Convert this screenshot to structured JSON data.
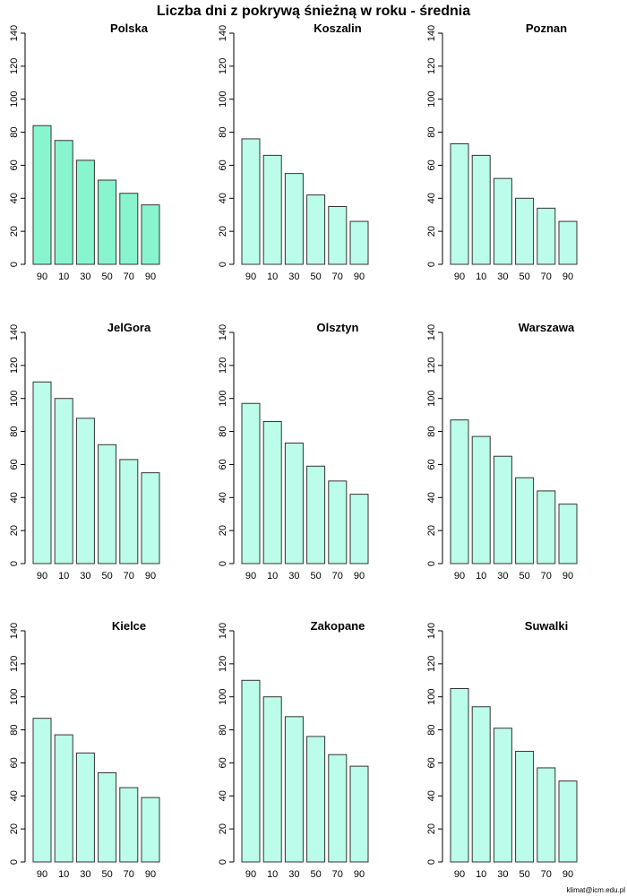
{
  "main_title": "Liczba dni z pokrywą śnieżną w roku - średnia",
  "credit": "klimat@icm.edu.pl",
  "bar_colors": {
    "highlight": "#88f5cf",
    "default": "#bbfdea",
    "stroke": "#333333"
  },
  "chart_data": [
    {
      "type": "bar",
      "title": "Polska",
      "categories": [
        "90",
        "10",
        "30",
        "50",
        "70",
        "90"
      ],
      "values": [
        84,
        75,
        63,
        51,
        43,
        36
      ],
      "ylim": [
        0,
        140
      ],
      "yticks": [
        0,
        20,
        40,
        60,
        80,
        100,
        120,
        140
      ],
      "xlabel": "",
      "ylabel": ""
    },
    {
      "type": "bar",
      "title": "Koszalin",
      "categories": [
        "90",
        "10",
        "30",
        "50",
        "70",
        "90"
      ],
      "values": [
        76,
        66,
        55,
        42,
        35,
        26
      ],
      "ylim": [
        0,
        140
      ],
      "yticks": [
        0,
        20,
        40,
        60,
        80,
        100,
        120,
        140
      ],
      "xlabel": "",
      "ylabel": ""
    },
    {
      "type": "bar",
      "title": "Poznan",
      "categories": [
        "90",
        "10",
        "30",
        "50",
        "70",
        "90"
      ],
      "values": [
        73,
        66,
        52,
        40,
        34,
        26
      ],
      "ylim": [
        0,
        140
      ],
      "yticks": [
        0,
        20,
        40,
        60,
        80,
        100,
        120,
        140
      ],
      "xlabel": "",
      "ylabel": ""
    },
    {
      "type": "bar",
      "title": "JelGora",
      "categories": [
        "90",
        "10",
        "30",
        "50",
        "70",
        "90"
      ],
      "values": [
        110,
        100,
        88,
        72,
        63,
        55
      ],
      "ylim": [
        0,
        140
      ],
      "yticks": [
        0,
        20,
        40,
        60,
        80,
        100,
        120,
        140
      ],
      "xlabel": "",
      "ylabel": ""
    },
    {
      "type": "bar",
      "title": "Olsztyn",
      "categories": [
        "90",
        "10",
        "30",
        "50",
        "70",
        "90"
      ],
      "values": [
        97,
        86,
        73,
        59,
        50,
        42
      ],
      "ylim": [
        0,
        140
      ],
      "yticks": [
        0,
        20,
        40,
        60,
        80,
        100,
        120,
        140
      ],
      "xlabel": "",
      "ylabel": ""
    },
    {
      "type": "bar",
      "title": "Warszawa",
      "categories": [
        "90",
        "10",
        "30",
        "50",
        "70",
        "90"
      ],
      "values": [
        87,
        77,
        65,
        52,
        44,
        36
      ],
      "ylim": [
        0,
        140
      ],
      "yticks": [
        0,
        20,
        40,
        60,
        80,
        100,
        120,
        140
      ],
      "xlabel": "",
      "ylabel": ""
    },
    {
      "type": "bar",
      "title": "Kielce",
      "categories": [
        "90",
        "10",
        "30",
        "50",
        "70",
        "90"
      ],
      "values": [
        87,
        77,
        66,
        54,
        45,
        39
      ],
      "ylim": [
        0,
        140
      ],
      "yticks": [
        0,
        20,
        40,
        60,
        80,
        100,
        120,
        140
      ],
      "xlabel": "",
      "ylabel": ""
    },
    {
      "type": "bar",
      "title": "Zakopane",
      "categories": [
        "90",
        "10",
        "30",
        "50",
        "70",
        "90"
      ],
      "values": [
        110,
        100,
        88,
        76,
        65,
        58
      ],
      "ylim": [
        0,
        140
      ],
      "yticks": [
        0,
        20,
        40,
        60,
        80,
        100,
        120,
        140
      ],
      "xlabel": "",
      "ylabel": ""
    },
    {
      "type": "bar",
      "title": "Suwalki",
      "categories": [
        "90",
        "10",
        "30",
        "50",
        "70",
        "90"
      ],
      "values": [
        105,
        94,
        81,
        67,
        57,
        49
      ],
      "ylim": [
        0,
        140
      ],
      "yticks": [
        0,
        20,
        40,
        60,
        80,
        100,
        120,
        140
      ],
      "xlabel": "",
      "ylabel": ""
    }
  ]
}
